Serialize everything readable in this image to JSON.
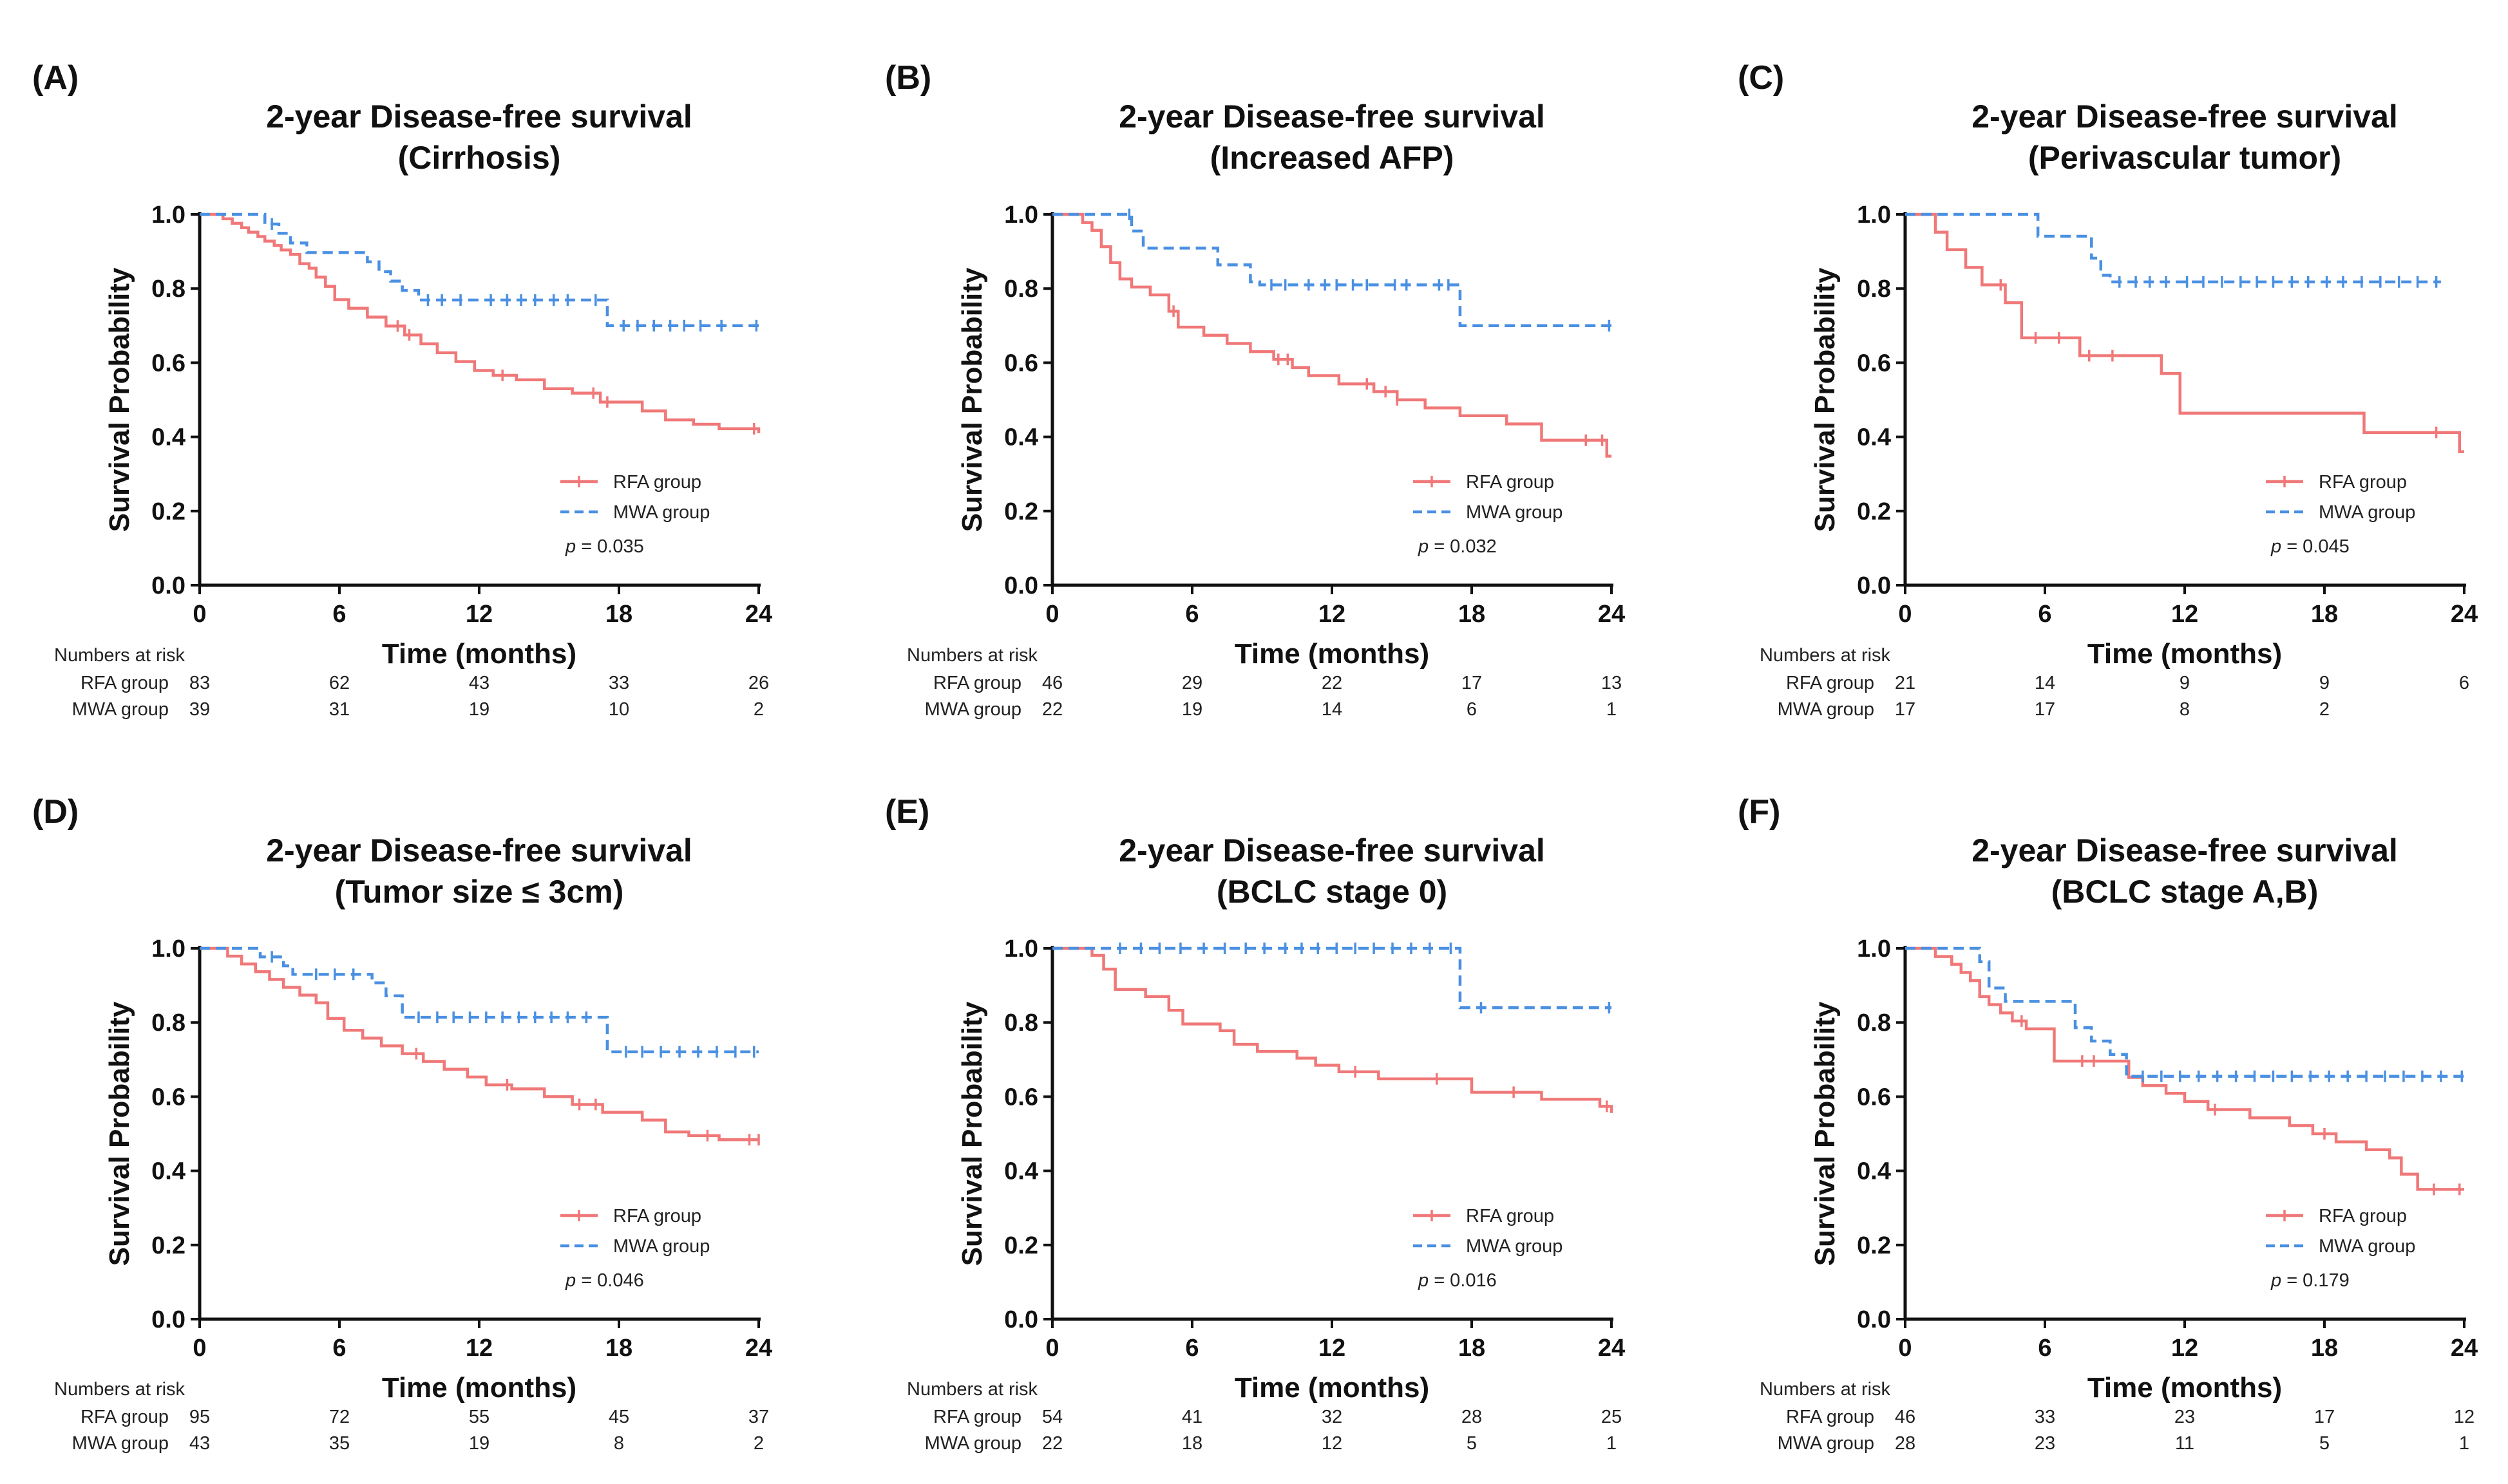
{
  "colors": {
    "rfa": "#f07878",
    "mwa": "#4a90e2",
    "axis": "#111111"
  },
  "chart_data": [
    {
      "type": "line",
      "panel_label": "(A)",
      "title_line1": "2-year Disease-free survival",
      "title_line2": "(Cirrhosis)",
      "xlabel": "Time (months)",
      "ylabel": "Survival Probability",
      "xlim": [
        0,
        24
      ],
      "ylim": [
        0.0,
        1.0
      ],
      "xticks": [
        "0",
        "6",
        "12",
        "18",
        "24"
      ],
      "yticks": [
        "0.0",
        "0.2",
        "0.4",
        "0.6",
        "0.8",
        "1.0"
      ],
      "legend": {
        "rfa": "RFA group",
        "mwa": "MWA group"
      },
      "pvalue": "= 0.035",
      "series": [
        {
          "name": "RFA group",
          "key": "rfa",
          "style": "solid",
          "x": [
            0,
            1.0,
            1.4,
            1.8,
            2.1,
            2.5,
            2.8,
            3.2,
            3.5,
            3.9,
            4.3,
            4.7,
            5.0,
            5.4,
            5.8,
            6.4,
            7.2,
            8.0,
            8.8,
            9.5,
            10.2,
            11.0,
            11.8,
            12.6,
            13.6,
            14.8,
            16.0,
            17.2,
            19.0,
            20.0,
            21.2,
            22.3,
            24
          ],
          "y": [
            1.0,
            0.988,
            0.976,
            0.964,
            0.952,
            0.94,
            0.928,
            0.916,
            0.904,
            0.892,
            0.867,
            0.855,
            0.831,
            0.806,
            0.77,
            0.747,
            0.723,
            0.699,
            0.675,
            0.651,
            0.627,
            0.603,
            0.579,
            0.566,
            0.554,
            0.53,
            0.518,
            0.494,
            0.47,
            0.446,
            0.434,
            0.422,
            0.41
          ],
          "censors": [
            8.5,
            9.0,
            13.0,
            16.9,
            17.5,
            23.8
          ]
        },
        {
          "name": "MWA group",
          "key": "mwa",
          "style": "dashed",
          "x": [
            0,
            2.8,
            3.4,
            3.9,
            4.6,
            7.2,
            7.7,
            8.2,
            8.7,
            9.4,
            17.5,
            24
          ],
          "y": [
            1.0,
            0.974,
            0.949,
            0.923,
            0.897,
            0.872,
            0.846,
            0.82,
            0.795,
            0.769,
            0.7,
            0.7
          ],
          "censors": [
            3.1,
            9.8,
            10.4,
            11.2,
            12.5,
            13.2,
            13.8,
            14.4,
            15.2,
            15.8,
            17.0,
            18.2,
            18.8,
            19.5,
            20.2,
            20.8,
            21.5,
            22.4,
            23.9
          ]
        }
      ],
      "risk": {
        "header": "Numbers at risk",
        "rows": [
          {
            "label": "RFA group",
            "values": [
              "83",
              "62",
              "43",
              "33",
              "26"
            ]
          },
          {
            "label": "MWA group",
            "values": [
              "39",
              "31",
              "19",
              "10",
              "2"
            ]
          }
        ]
      }
    },
    {
      "type": "line",
      "panel_label": "(B)",
      "title_line1": "2-year Disease-free survival",
      "title_line2": "(Increased AFP)",
      "xlabel": "Time (months)",
      "ylabel": "Survival Probability",
      "xlim": [
        0,
        24
      ],
      "ylim": [
        0.0,
        1.0
      ],
      "xticks": [
        "0",
        "6",
        "12",
        "18",
        "24"
      ],
      "yticks": [
        "0.0",
        "0.2",
        "0.4",
        "0.6",
        "0.8",
        "1.0"
      ],
      "legend": {
        "rfa": "RFA group",
        "mwa": "MWA group"
      },
      "pvalue": "= 0.032",
      "series": [
        {
          "name": "RFA group",
          "key": "rfa",
          "style": "solid",
          "x": [
            0,
            1.3,
            1.7,
            2.1,
            2.5,
            2.9,
            3.4,
            4.2,
            5.0,
            5.4,
            6.5,
            7.5,
            8.5,
            9.5,
            10.3,
            11.0,
            12.3,
            13.8,
            14.8,
            16.0,
            17.5,
            19.5,
            21.0,
            23.8,
            24
          ],
          "y": [
            1.0,
            0.978,
            0.957,
            0.913,
            0.87,
            0.826,
            0.804,
            0.783,
            0.739,
            0.696,
            0.674,
            0.652,
            0.63,
            0.609,
            0.587,
            0.565,
            0.543,
            0.522,
            0.5,
            0.478,
            0.457,
            0.435,
            0.391,
            0.348,
            0.348
          ],
          "censors": [
            5.2,
            9.7,
            10.1,
            13.5,
            14.3,
            14.8,
            22.9,
            23.6
          ]
        },
        {
          "name": "MWA group",
          "key": "mwa",
          "style": "dashed",
          "x": [
            0,
            3.4,
            3.9,
            4.7,
            7.1,
            8.5,
            8.9,
            17.5,
            24
          ],
          "y": [
            1.0,
            0.955,
            0.909,
            0.909,
            0.864,
            0.818,
            0.81,
            0.7,
            0.7
          ],
          "censors": [
            3.3,
            9.4,
            10.0,
            11.0,
            11.7,
            12.2,
            12.9,
            13.5,
            14.7,
            15.2,
            16.6,
            17.0,
            23.9
          ]
        }
      ],
      "risk": {
        "header": "Numbers at risk",
        "rows": [
          {
            "label": "RFA group",
            "values": [
              "46",
              "29",
              "22",
              "17",
              "13"
            ]
          },
          {
            "label": "MWA group",
            "values": [
              "22",
              "19",
              "14",
              "6",
              "1"
            ]
          }
        ]
      }
    },
    {
      "type": "line",
      "panel_label": "(C)",
      "title_line1": "2-year Disease-free survival",
      "title_line2": "(Perivascular tumor)",
      "xlabel": "Time (months)",
      "ylabel": "Survival Probability",
      "xlim": [
        0,
        24
      ],
      "ylim": [
        0.0,
        1.0
      ],
      "xticks": [
        "0",
        "6",
        "12",
        "18",
        "24"
      ],
      "yticks": [
        "0.0",
        "0.2",
        "0.4",
        "0.6",
        "0.8",
        "1.0"
      ],
      "legend": {
        "rfa": "RFA group",
        "mwa": "MWA group"
      },
      "pvalue": "= 0.045",
      "series": [
        {
          "name": "RFA group",
          "key": "rfa",
          "style": "solid",
          "x": [
            0,
            1.3,
            1.8,
            2.6,
            3.3,
            4.3,
            5.0,
            7.5,
            10.0,
            11.0,
            11.8,
            19.7,
            23.8,
            24
          ],
          "y": [
            1.0,
            0.952,
            0.905,
            0.857,
            0.81,
            0.762,
            0.667,
            0.619,
            0.619,
            0.571,
            0.464,
            0.412,
            0.36,
            0.36
          ],
          "censors": [
            4.1,
            5.6,
            6.6,
            7.9,
            8.9,
            22.8
          ]
        },
        {
          "name": "MWA group",
          "key": "mwa",
          "style": "dashed",
          "x": [
            0,
            5.7,
            8.0,
            8.4,
            8.8,
            9.3,
            23.0
          ],
          "y": [
            1.0,
            0.941,
            0.882,
            0.836,
            0.818,
            0.818,
            0.818
          ],
          "censors": [
            9.2,
            9.9,
            10.5,
            11.2,
            12.1,
            12.8,
            13.6,
            14.4,
            15.1,
            15.8,
            16.6,
            17.3,
            18.1,
            18.8,
            19.6,
            20.4,
            21.2,
            22.0,
            22.8
          ]
        }
      ],
      "risk": {
        "header": "Numbers at risk",
        "rows": [
          {
            "label": "RFA group",
            "values": [
              "21",
              "14",
              "9",
              "9",
              "6"
            ]
          },
          {
            "label": "MWA group",
            "values": [
              "17",
              "17",
              "8",
              "2",
              ""
            ]
          }
        ]
      }
    },
    {
      "type": "line",
      "panel_label": "(D)",
      "title_line1": "2-year Disease-free survival",
      "title_line2": "(Tumor size ≤ 3cm)",
      "xlabel": "Time (months)",
      "ylabel": "Survival Probability",
      "xlim": [
        0,
        24
      ],
      "ylim": [
        0.0,
        1.0
      ],
      "xticks": [
        "0",
        "6",
        "12",
        "18",
        "24"
      ],
      "yticks": [
        "0.0",
        "0.2",
        "0.4",
        "0.6",
        "0.8",
        "1.0"
      ],
      "legend": {
        "rfa": "RFA group",
        "mwa": "MWA group"
      },
      "pvalue": "= 0.046",
      "series": [
        {
          "name": "RFA group",
          "key": "rfa",
          "style": "solid",
          "x": [
            0,
            1.2,
            1.8,
            2.4,
            3.0,
            3.6,
            4.3,
            5.0,
            5.5,
            6.2,
            7.0,
            7.8,
            8.7,
            9.6,
            10.5,
            11.5,
            12.3,
            13.4,
            14.8,
            16.0,
            17.3,
            19.0,
            20.0,
            21.0,
            22.3,
            24
          ],
          "y": [
            1.0,
            0.979,
            0.958,
            0.937,
            0.916,
            0.895,
            0.874,
            0.853,
            0.811,
            0.779,
            0.758,
            0.737,
            0.716,
            0.695,
            0.674,
            0.653,
            0.632,
            0.621,
            0.6,
            0.579,
            0.558,
            0.537,
            0.505,
            0.495,
            0.484,
            0.484
          ],
          "censors": [
            9.3,
            13.2,
            16.3,
            17.0,
            21.8,
            23.6,
            24.0
          ]
        },
        {
          "name": "MWA group",
          "key": "mwa",
          "style": "dashed",
          "x": [
            0,
            2.6,
            3.6,
            4.0,
            7.4,
            8.0,
            8.7,
            17.5,
            24
          ],
          "y": [
            1.0,
            0.977,
            0.953,
            0.93,
            0.907,
            0.872,
            0.814,
            0.721,
            0.721
          ],
          "censors": [
            3.1,
            5.0,
            5.8,
            6.6,
            9.4,
            10.2,
            10.9,
            11.6,
            12.3,
            13.0,
            13.7,
            14.4,
            15.1,
            15.8,
            16.6,
            18.3,
            19.0,
            19.8,
            20.6,
            21.4,
            22.2,
            23.0,
            23.8
          ]
        }
      ],
      "risk": {
        "header": "Numbers at risk",
        "rows": [
          {
            "label": "RFA group",
            "values": [
              "95",
              "72",
              "55",
              "45",
              "37"
            ]
          },
          {
            "label": "MWA group",
            "values": [
              "43",
              "35",
              "19",
              "8",
              "2"
            ]
          }
        ]
      }
    },
    {
      "type": "line",
      "panel_label": "(E)",
      "title_line1": "2-year Disease-free survival",
      "title_line2": "(BCLC stage 0)",
      "xlabel": "Time (months)",
      "ylabel": "Survival Probability",
      "xlim": [
        0,
        24
      ],
      "ylim": [
        0.0,
        1.0
      ],
      "xticks": [
        "0",
        "6",
        "12",
        "18",
        "24"
      ],
      "yticks": [
        "0.0",
        "0.2",
        "0.4",
        "0.6",
        "0.8",
        "1.0"
      ],
      "legend": {
        "rfa": "RFA group",
        "mwa": "MWA group"
      },
      "pvalue": "= 0.016",
      "series": [
        {
          "name": "RFA group",
          "key": "rfa",
          "style": "solid",
          "x": [
            0,
            1.7,
            2.2,
            2.7,
            4.0,
            5.0,
            5.6,
            7.2,
            7.8,
            8.8,
            10.5,
            11.3,
            12.3,
            14.0,
            18.0,
            21.0,
            23.5,
            24
          ],
          "y": [
            1.0,
            0.981,
            0.944,
            0.889,
            0.87,
            0.833,
            0.796,
            0.778,
            0.741,
            0.722,
            0.704,
            0.685,
            0.667,
            0.648,
            0.612,
            0.593,
            0.574,
            0.556
          ],
          "censors": [
            13.0,
            16.5,
            19.8,
            23.8
          ]
        },
        {
          "name": "MWA group",
          "key": "mwa",
          "style": "dashed",
          "x": [
            0,
            17.5,
            24
          ],
          "y": [
            1.0,
            0.84,
            0.84
          ],
          "censors": [
            2.9,
            3.8,
            4.6,
            5.5,
            6.5,
            7.4,
            8.3,
            9.1,
            10.0,
            10.7,
            11.4,
            12.2,
            13.0,
            13.8,
            14.6,
            15.4,
            16.2,
            17.1,
            18.4,
            23.9
          ]
        }
      ],
      "risk": {
        "header": "Numbers at risk",
        "rows": [
          {
            "label": "RFA group",
            "values": [
              "54",
              "41",
              "32",
              "28",
              "25"
            ]
          },
          {
            "label": "MWA group",
            "values": [
              "22",
              "18",
              "12",
              "5",
              "1"
            ]
          }
        ]
      }
    },
    {
      "type": "line",
      "panel_label": "(F)",
      "title_line1": "2-year Disease-free survival",
      "title_line2": "(BCLC stage A,B)",
      "xlabel": "Time (months)",
      "ylabel": "Survival Probability",
      "xlim": [
        0,
        24
      ],
      "ylim": [
        0.0,
        1.0
      ],
      "xticks": [
        "0",
        "6",
        "12",
        "18",
        "24"
      ],
      "yticks": [
        "0.0",
        "0.2",
        "0.4",
        "0.6",
        "0.8",
        "1.0"
      ],
      "legend": {
        "rfa": "RFA group",
        "mwa": "MWA group"
      },
      "pvalue": "= 0.179",
      "series": [
        {
          "name": "RFA group",
          "key": "rfa",
          "style": "solid",
          "x": [
            0,
            1.3,
            2.0,
            2.4,
            2.8,
            3.2,
            3.6,
            4.1,
            4.6,
            5.2,
            6.4,
            9.0,
            9.6,
            10.2,
            11.2,
            12.0,
            13.0,
            14.8,
            16.5,
            17.5,
            18.5,
            19.8,
            20.8,
            21.3,
            22.0,
            24
          ],
          "y": [
            1.0,
            0.978,
            0.957,
            0.935,
            0.913,
            0.87,
            0.848,
            0.826,
            0.804,
            0.783,
            0.696,
            0.696,
            0.652,
            0.63,
            0.609,
            0.587,
            0.565,
            0.543,
            0.522,
            0.5,
            0.478,
            0.457,
            0.435,
            0.391,
            0.35,
            0.35
          ],
          "censors": [
            5.0,
            7.6,
            8.1,
            13.3,
            18.0,
            22.7,
            23.8
          ]
        },
        {
          "name": "MWA group",
          "key": "mwa",
          "style": "dashed",
          "x": [
            0,
            3.2,
            3.6,
            4.3,
            7.3,
            8.0,
            8.8,
            9.5,
            24
          ],
          "y": [
            1.0,
            0.964,
            0.893,
            0.857,
            0.786,
            0.75,
            0.714,
            0.655,
            0.655
          ],
          "censors": [
            10.2,
            11.0,
            11.8,
            12.6,
            13.4,
            14.2,
            15.0,
            15.8,
            16.6,
            17.4,
            18.2,
            19.0,
            19.8,
            20.6,
            21.4,
            22.2,
            23.0,
            23.9
          ]
        }
      ],
      "risk": {
        "header": "Numbers at risk",
        "rows": [
          {
            "label": "RFA group",
            "values": [
              "46",
              "33",
              "23",
              "17",
              "12"
            ]
          },
          {
            "label": "MWA group",
            "values": [
              "28",
              "23",
              "11",
              "5",
              "1"
            ]
          }
        ]
      }
    }
  ]
}
